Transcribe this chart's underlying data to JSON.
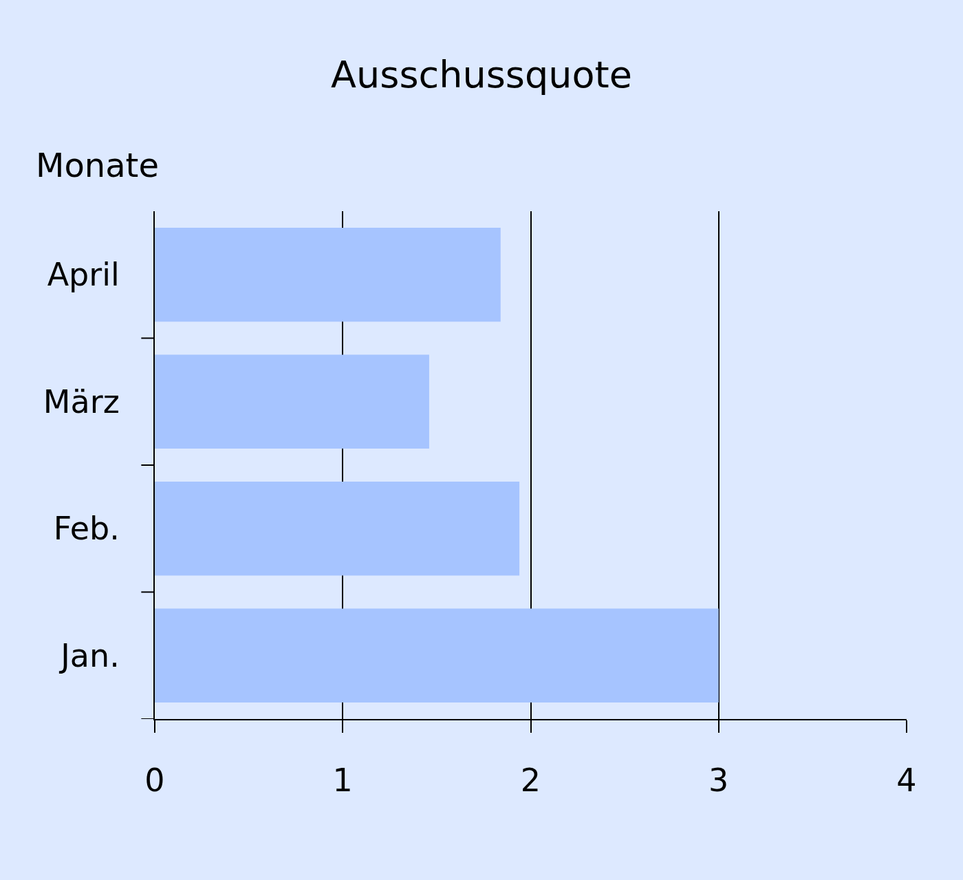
{
  "chart_data": {
    "type": "bar",
    "orientation": "horizontal",
    "title": "Ausschussquote",
    "ylabel": "Monate",
    "categories": [
      "April",
      "März",
      "Feb.",
      "Jan."
    ],
    "values": [
      1.84,
      1.46,
      1.94,
      3.0
    ],
    "color": "#a6c4ff",
    "xlim": [
      0,
      4
    ],
    "xticks": [
      0,
      1,
      2,
      3,
      4
    ],
    "grid": "x",
    "legend": false
  }
}
